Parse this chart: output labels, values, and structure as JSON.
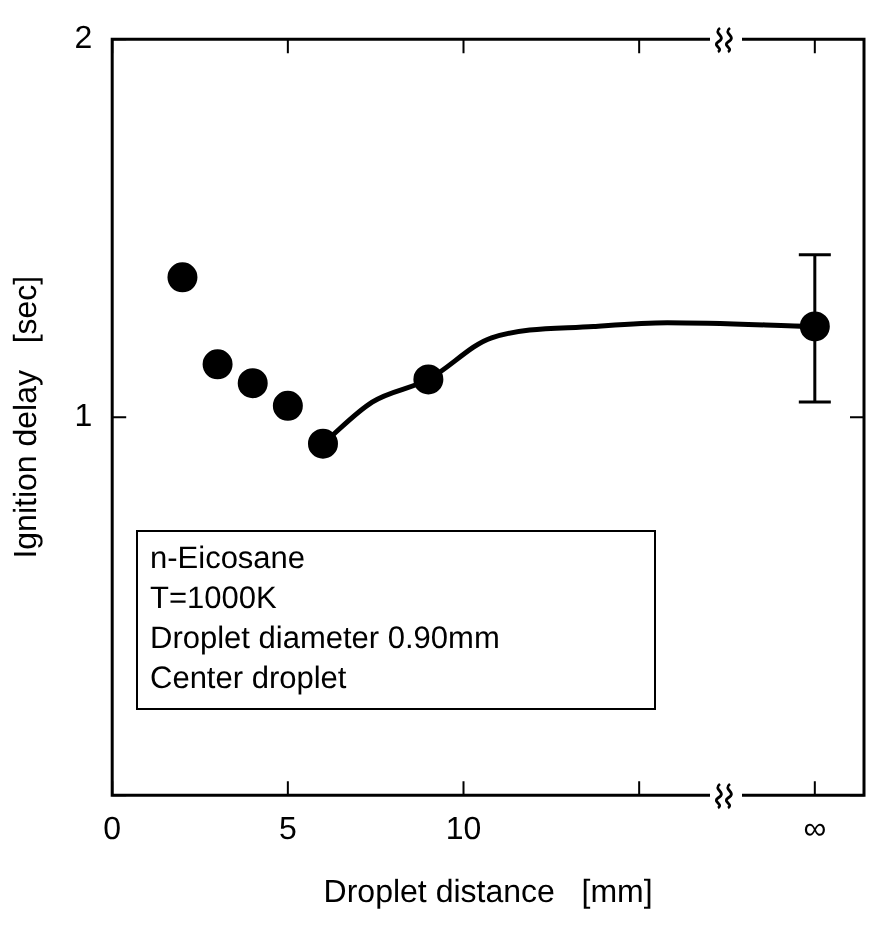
{
  "chart_data": {
    "type": "scatter",
    "xlabel": "Droplet distance   [mm]",
    "ylabel": "Ignition delay   [sec]",
    "xlim": [
      0,
      21.4
    ],
    "xticks": [
      0,
      5,
      10,
      {
        "value": 15,
        "label": null
      },
      {
        "value": 20,
        "label": "∞"
      }
    ],
    "ylim": [
      0,
      2
    ],
    "yticks": [
      {
        "value": 0,
        "label": null
      },
      1,
      2
    ],
    "grid": false,
    "legend": false,
    "marker": "circle",
    "series": [
      {
        "type": "scatter",
        "color": "#000000",
        "x": [
          2,
          3,
          4,
          5,
          6,
          9,
          20
        ],
        "values": [
          1.37,
          1.14,
          1.09,
          1.03,
          0.93,
          1.1,
          1.24
        ],
        "errors": [
          null,
          null,
          null,
          null,
          null,
          null,
          [
            1.04,
            1.43
          ]
        ]
      },
      {
        "type": "line",
        "color": "#000000",
        "marker": "none",
        "x": [
          6,
          7.4,
          9,
          10.8,
          13.7,
          15.8,
          20
        ],
        "values": [
          0.93,
          1.04,
          1.1,
          1.21,
          1.24,
          1.25,
          1.24
        ]
      }
    ],
    "annotations": [
      "n-Eicosane",
      "T=1000K",
      "Droplet diameter  0.90mm",
      "Center droplet"
    ]
  }
}
